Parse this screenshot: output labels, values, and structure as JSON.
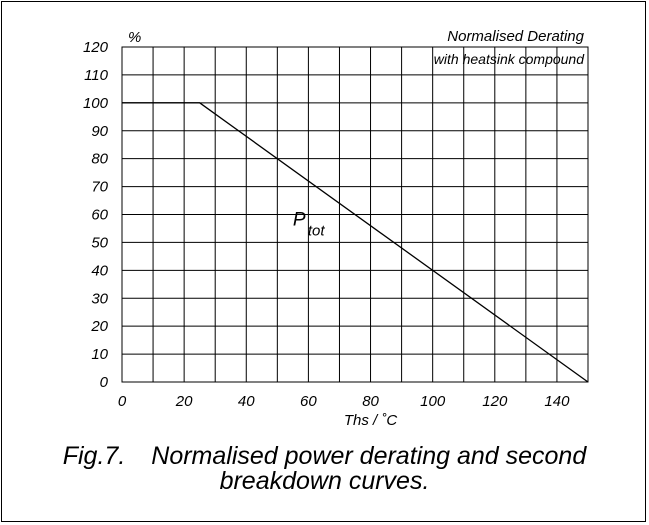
{
  "chart_data": {
    "type": "line",
    "xlabel": "Ths / ˚C",
    "ylabel": "%",
    "xlim": [
      0,
      150
    ],
    "ylim": [
      0,
      120
    ],
    "xticks": [
      0,
      20,
      40,
      60,
      80,
      100,
      120,
      140
    ],
    "xtick_labels": [
      "0",
      "20",
      "40",
      "60",
      "80",
      "100",
      "120",
      "140"
    ],
    "yticks": [
      0,
      10,
      20,
      30,
      40,
      50,
      60,
      70,
      80,
      90,
      100,
      110,
      120
    ],
    "ytick_labels": [
      "0",
      "10",
      "20",
      "30",
      "40",
      "50",
      "60",
      "70",
      "80",
      "90",
      "100",
      "110",
      "120"
    ],
    "grid": true,
    "annotations": [
      {
        "text": "Normalised Derating",
        "position": "top-right"
      },
      {
        "text": "with heatsink compound",
        "position": "top-right"
      }
    ],
    "series": [
      {
        "label": "P",
        "label_subscript": "tot",
        "x": [
          0,
          25,
          150
        ],
        "y": [
          100,
          100,
          0
        ],
        "label_at": [
          55,
          56
        ]
      }
    ]
  },
  "caption": {
    "figure_number": "Fig.7.",
    "line1": "Normalised power derating and second",
    "line2": "breakdown curves."
  },
  "colors": {
    "ink": "#000000",
    "background": "#ffffff"
  }
}
